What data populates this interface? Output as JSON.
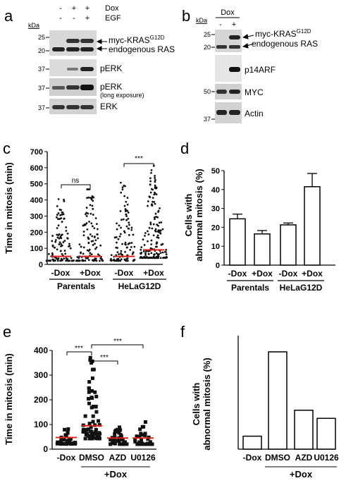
{
  "panels": {
    "a": {
      "letter": "a",
      "kda": "kDa",
      "row_labels": [
        "Dox",
        "EGF"
      ],
      "lane_signs": [
        [
          "-",
          "+",
          "+"
        ],
        [
          "-",
          "-",
          "+"
        ]
      ],
      "markers": [
        "25",
        "20",
        "37",
        "37",
        "37"
      ],
      "bands": [
        "myc-KRAS",
        "G12D",
        "endogenous RAS",
        "pERK",
        "pERK",
        "(long exposure)",
        "ERK"
      ]
    },
    "b": {
      "letter": "b",
      "kda": "kDa",
      "treatment": "Dox",
      "lane_signs": [
        "-",
        "+"
      ],
      "markers": [
        "25",
        "20",
        "50",
        "37"
      ],
      "bands": [
        "myc-KRAS",
        "G12D",
        "endogenous RAS",
        "p14ARF",
        "MYC",
        "Actin"
      ]
    },
    "c": {
      "letter": "c",
      "significance": [
        "ns",
        "***"
      ]
    },
    "d": {
      "letter": "d"
    },
    "e": {
      "letter": "e",
      "significance": [
        "***",
        "***",
        "***"
      ],
      "group_label": "+Dox"
    },
    "f": {
      "letter": "f",
      "group_label": "+Dox"
    }
  },
  "chart_data": [
    {
      "panel": "c",
      "type": "scatter",
      "ylabel": "Time in mitosis (min)",
      "ylim": [
        0,
        700
      ],
      "yticks": [
        "0",
        "100",
        "200",
        "300",
        "400",
        "500",
        "600",
        "700"
      ],
      "categories": [
        "-Dox",
        "+Dox",
        "-Dox",
        "+Dox"
      ],
      "groups": [
        "Parentals",
        "HeLaG12D"
      ],
      "median": [
        50,
        50,
        50,
        90
      ],
      "max": [
        410,
        475,
        515,
        620
      ]
    },
    {
      "panel": "d",
      "type": "bar",
      "ylabel": "Cells with abnormal mitosis (%)",
      "ylim": [
        0,
        50
      ],
      "yticks": [
        "0",
        "10",
        "20",
        "30",
        "40",
        "50"
      ],
      "categories": [
        "-Dox",
        "+Dox",
        "-Dox",
        "+Dox"
      ],
      "groups": [
        "Parentals",
        "HeLaG12D"
      ],
      "values": [
        24.5,
        16.5,
        21.3,
        41.5
      ],
      "errors": [
        2.5,
        1.8,
        1.0,
        7.0
      ]
    },
    {
      "panel": "e",
      "type": "scatter",
      "ylabel": "Time in mitosis (min)",
      "ylim": [
        0,
        400
      ],
      "yticks": [
        "0",
        "100",
        "200",
        "300",
        "400"
      ],
      "categories": [
        "-Dox",
        "DMSO",
        "AZD",
        "U0126"
      ],
      "median": [
        47,
        95,
        45,
        45
      ],
      "max": [
        90,
        380,
        100,
        110
      ]
    },
    {
      "panel": "f",
      "type": "bar",
      "ylabel": "Cells with abnormal mitosis (%)",
      "categories": [
        "-Dox",
        "DMSO",
        "AZD",
        "U0126"
      ],
      "values": [
        4,
        30,
        12,
        9.5
      ],
      "ylim": [
        0,
        35
      ]
    }
  ]
}
